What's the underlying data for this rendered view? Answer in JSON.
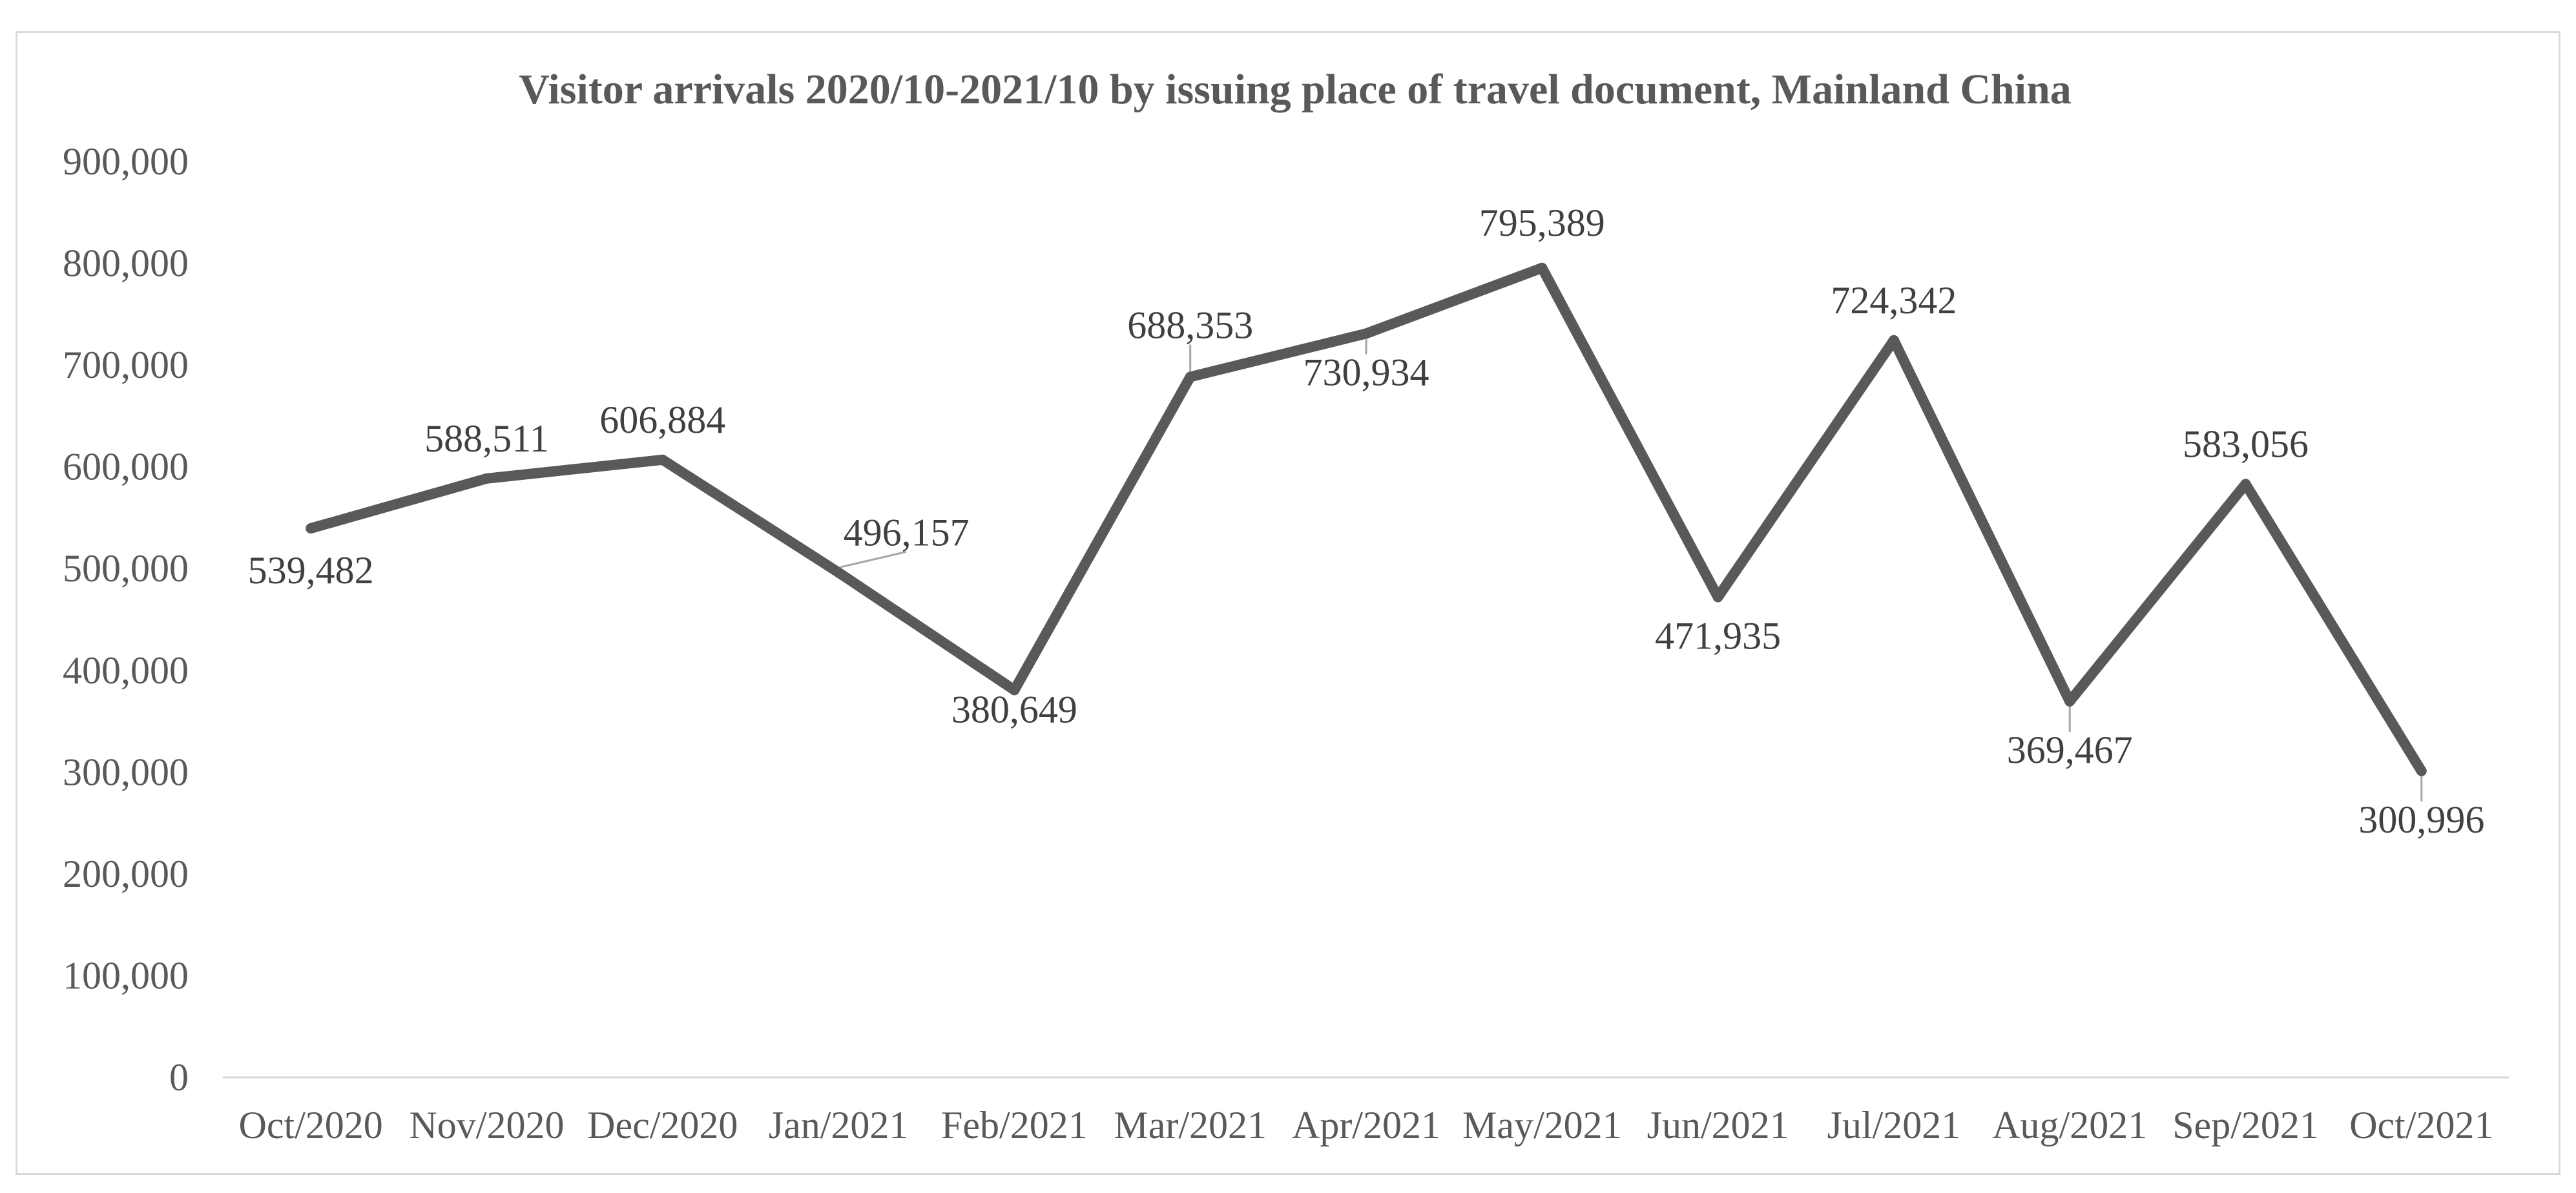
{
  "chart_data": {
    "type": "line",
    "title": "Visitor arrivals 2020/10-2021/10 by issuing place of travel document, Mainland China",
    "xlabel": "",
    "ylabel": "",
    "categories": [
      "Oct/2020",
      "Nov/2020",
      "Dec/2020",
      "Jan/2021",
      "Feb/2021",
      "Mar/2021",
      "Apr/2021",
      "May/2021",
      "Jun/2021",
      "Jul/2021",
      "Aug/2021",
      "Sep/2021",
      "Oct/2021"
    ],
    "series": [
      {
        "values": [
          539482,
          588511,
          606884,
          496157,
          380649,
          688353,
          730934,
          795389,
          471935,
          724342,
          369467,
          583056,
          300996
        ],
        "data_labels": [
          "539,482",
          "588,511",
          "606,884",
          "496,157",
          "380,649",
          "688,353",
          "730,934",
          "795,389",
          "471,935",
          "724,342",
          "369,467",
          "583,056",
          "300,996"
        ],
        "color": "#595959"
      }
    ],
    "ylim": [
      0,
      900000
    ],
    "y_ticks": [
      0,
      100000,
      200000,
      300000,
      400000,
      500000,
      600000,
      700000,
      800000,
      900000
    ],
    "y_tick_labels": [
      "0",
      "100,000",
      "200,000",
      "300,000",
      "400,000",
      "500,000",
      "600,000",
      "700,000",
      "800,000",
      "900,000"
    ],
    "grid": false,
    "legend": "none"
  }
}
